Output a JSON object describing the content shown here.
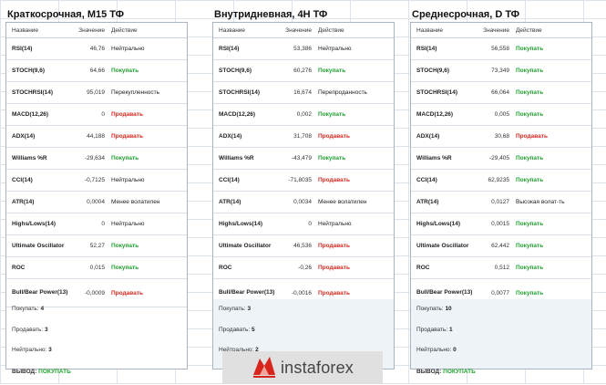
{
  "panels": [
    {
      "title": "Краткосрочная, М15 ТФ",
      "headers": [
        "Название",
        "Значение",
        "Действие"
      ],
      "rows": [
        {
          "name": "RSI(14)",
          "value": "46,76",
          "action": "Нейтрально",
          "type": "neutral"
        },
        {
          "name": "STOCH(9,6)",
          "value": "64,66",
          "action": "Покупать",
          "type": "buy"
        },
        {
          "name": "STOCHRSI(14)",
          "value": "95,019",
          "action": "Перекупленность",
          "type": "neutral"
        },
        {
          "name": "MACD(12,26)",
          "value": "0",
          "action": "Продавать",
          "type": "sell"
        },
        {
          "name": "ADX(14)",
          "value": "44,188",
          "action": "Продавать",
          "type": "sell"
        },
        {
          "name": "Williams %R",
          "value": "-29,634",
          "action": "Покупать",
          "type": "buy"
        },
        {
          "name": "CCI(14)",
          "value": "-0,7125",
          "action": "Нейтрально",
          "type": "neutral"
        },
        {
          "name": "ATR(14)",
          "value": "0,0004",
          "action": "Менее волатилен",
          "type": "neutral"
        },
        {
          "name": "Highs/Lows(14)",
          "value": "0",
          "action": "Нейтрально",
          "type": "neutral"
        },
        {
          "name": "Ultimate Oscillator",
          "value": "52,27",
          "action": "Покупать",
          "type": "buy"
        },
        {
          "name": "ROC",
          "value": "0,015",
          "action": "Покупать",
          "type": "buy"
        },
        {
          "name": "Bull/Bear Power(13)",
          "value": "-0,0009",
          "action": "Продавать",
          "type": "sell"
        }
      ],
      "summary": {
        "buy_label": "Покупать:",
        "buy": "4",
        "sell_label": "Продавать:",
        "sell": "3",
        "neutral_label": "Нейтрально:",
        "neutral": "3",
        "verdict_label": "ВЫВОД:",
        "verdict": "ПОКУПАТЬ"
      }
    },
    {
      "title": "Внутридневная, 4H ТФ",
      "headers": [
        "Название",
        "Значение",
        "Действие"
      ],
      "rows": [
        {
          "name": "RSI(14)",
          "value": "53,386",
          "action": "Нейтрально",
          "type": "neutral"
        },
        {
          "name": "STOCH(9,6)",
          "value": "60,276",
          "action": "Покупать",
          "type": "buy"
        },
        {
          "name": "STOCHRSI(14)",
          "value": "16,674",
          "action": "Перепроданность",
          "type": "neutral"
        },
        {
          "name": "MACD(12,26)",
          "value": "0,002",
          "action": "Покупать",
          "type": "buy"
        },
        {
          "name": "ADX(14)",
          "value": "31,708",
          "action": "Продавать",
          "type": "sell"
        },
        {
          "name": "Williams %R",
          "value": "-43,479",
          "action": "Покупать",
          "type": "buy"
        },
        {
          "name": "CCI(14)",
          "value": "-71,8035",
          "action": "Продавать",
          "type": "sell"
        },
        {
          "name": "ATR(14)",
          "value": "0,0034",
          "action": "Менее волатилен",
          "type": "neutral"
        },
        {
          "name": "Highs/Lows(14)",
          "value": "0",
          "action": "Нейтрально",
          "type": "neutral"
        },
        {
          "name": "Ultimate Oscillator",
          "value": "46,536",
          "action": "Продавать",
          "type": "sell"
        },
        {
          "name": "ROC",
          "value": "-0,26",
          "action": "Продавать",
          "type": "sell"
        },
        {
          "name": "Bull/Bear Power(13)",
          "value": "-0,0016",
          "action": "Продавать",
          "type": "sell"
        }
      ],
      "summary": {
        "buy_label": "Покупать:",
        "buy": "3",
        "sell_label": "Продавать:",
        "sell": "5",
        "neutral_label": "Нейтрально:",
        "neutral": "2",
        "verdict_label": "",
        "verdict": ""
      }
    },
    {
      "title": "Среднесрочная, D ТФ",
      "headers": [
        "Название",
        "Значение",
        "Действие"
      ],
      "rows": [
        {
          "name": "RSI(14)",
          "value": "56,558",
          "action": "Покупать",
          "type": "buy"
        },
        {
          "name": "STOCH(9,6)",
          "value": "73,349",
          "action": "Покупать",
          "type": "buy"
        },
        {
          "name": "STOCHRSI(14)",
          "value": "66,064",
          "action": "Покупать",
          "type": "buy"
        },
        {
          "name": "MACD(12,26)",
          "value": "0,005",
          "action": "Покупать",
          "type": "buy"
        },
        {
          "name": "ADX(14)",
          "value": "30,68",
          "action": "Продавать",
          "type": "sell"
        },
        {
          "name": "Williams %R",
          "value": "-29,405",
          "action": "Покупать",
          "type": "buy"
        },
        {
          "name": "CCI(14)",
          "value": "62,9235",
          "action": "Покупать",
          "type": "buy"
        },
        {
          "name": "ATR(14)",
          "value": "0,0127",
          "action": "Высокая волат-ть",
          "type": "neutral"
        },
        {
          "name": "Highs/Lows(14)",
          "value": "0,0015",
          "action": "Покупать",
          "type": "buy"
        },
        {
          "name": "Ultimate Oscillator",
          "value": "62,442",
          "action": "Покупать",
          "type": "buy"
        },
        {
          "name": "ROC",
          "value": "0,512",
          "action": "Покупать",
          "type": "buy"
        },
        {
          "name": "Bull/Bear Power(13)",
          "value": "0,0077",
          "action": "Покупать",
          "type": "buy"
        }
      ],
      "summary": {
        "buy_label": "Покупать:",
        "buy": "10",
        "sell_label": "Продавать:",
        "sell": "1",
        "neutral_label": "Нейтрально:",
        "neutral": "0",
        "verdict_label": "ВЫВОД:",
        "verdict": "ПОКУПАТЬ"
      }
    }
  ],
  "watermark": {
    "text": "instaforex",
    "icon": "instaforex-logo-icon",
    "colors": {
      "red": "#d8251b",
      "bg": "#e0e0e0",
      "text": "#444444"
    }
  }
}
